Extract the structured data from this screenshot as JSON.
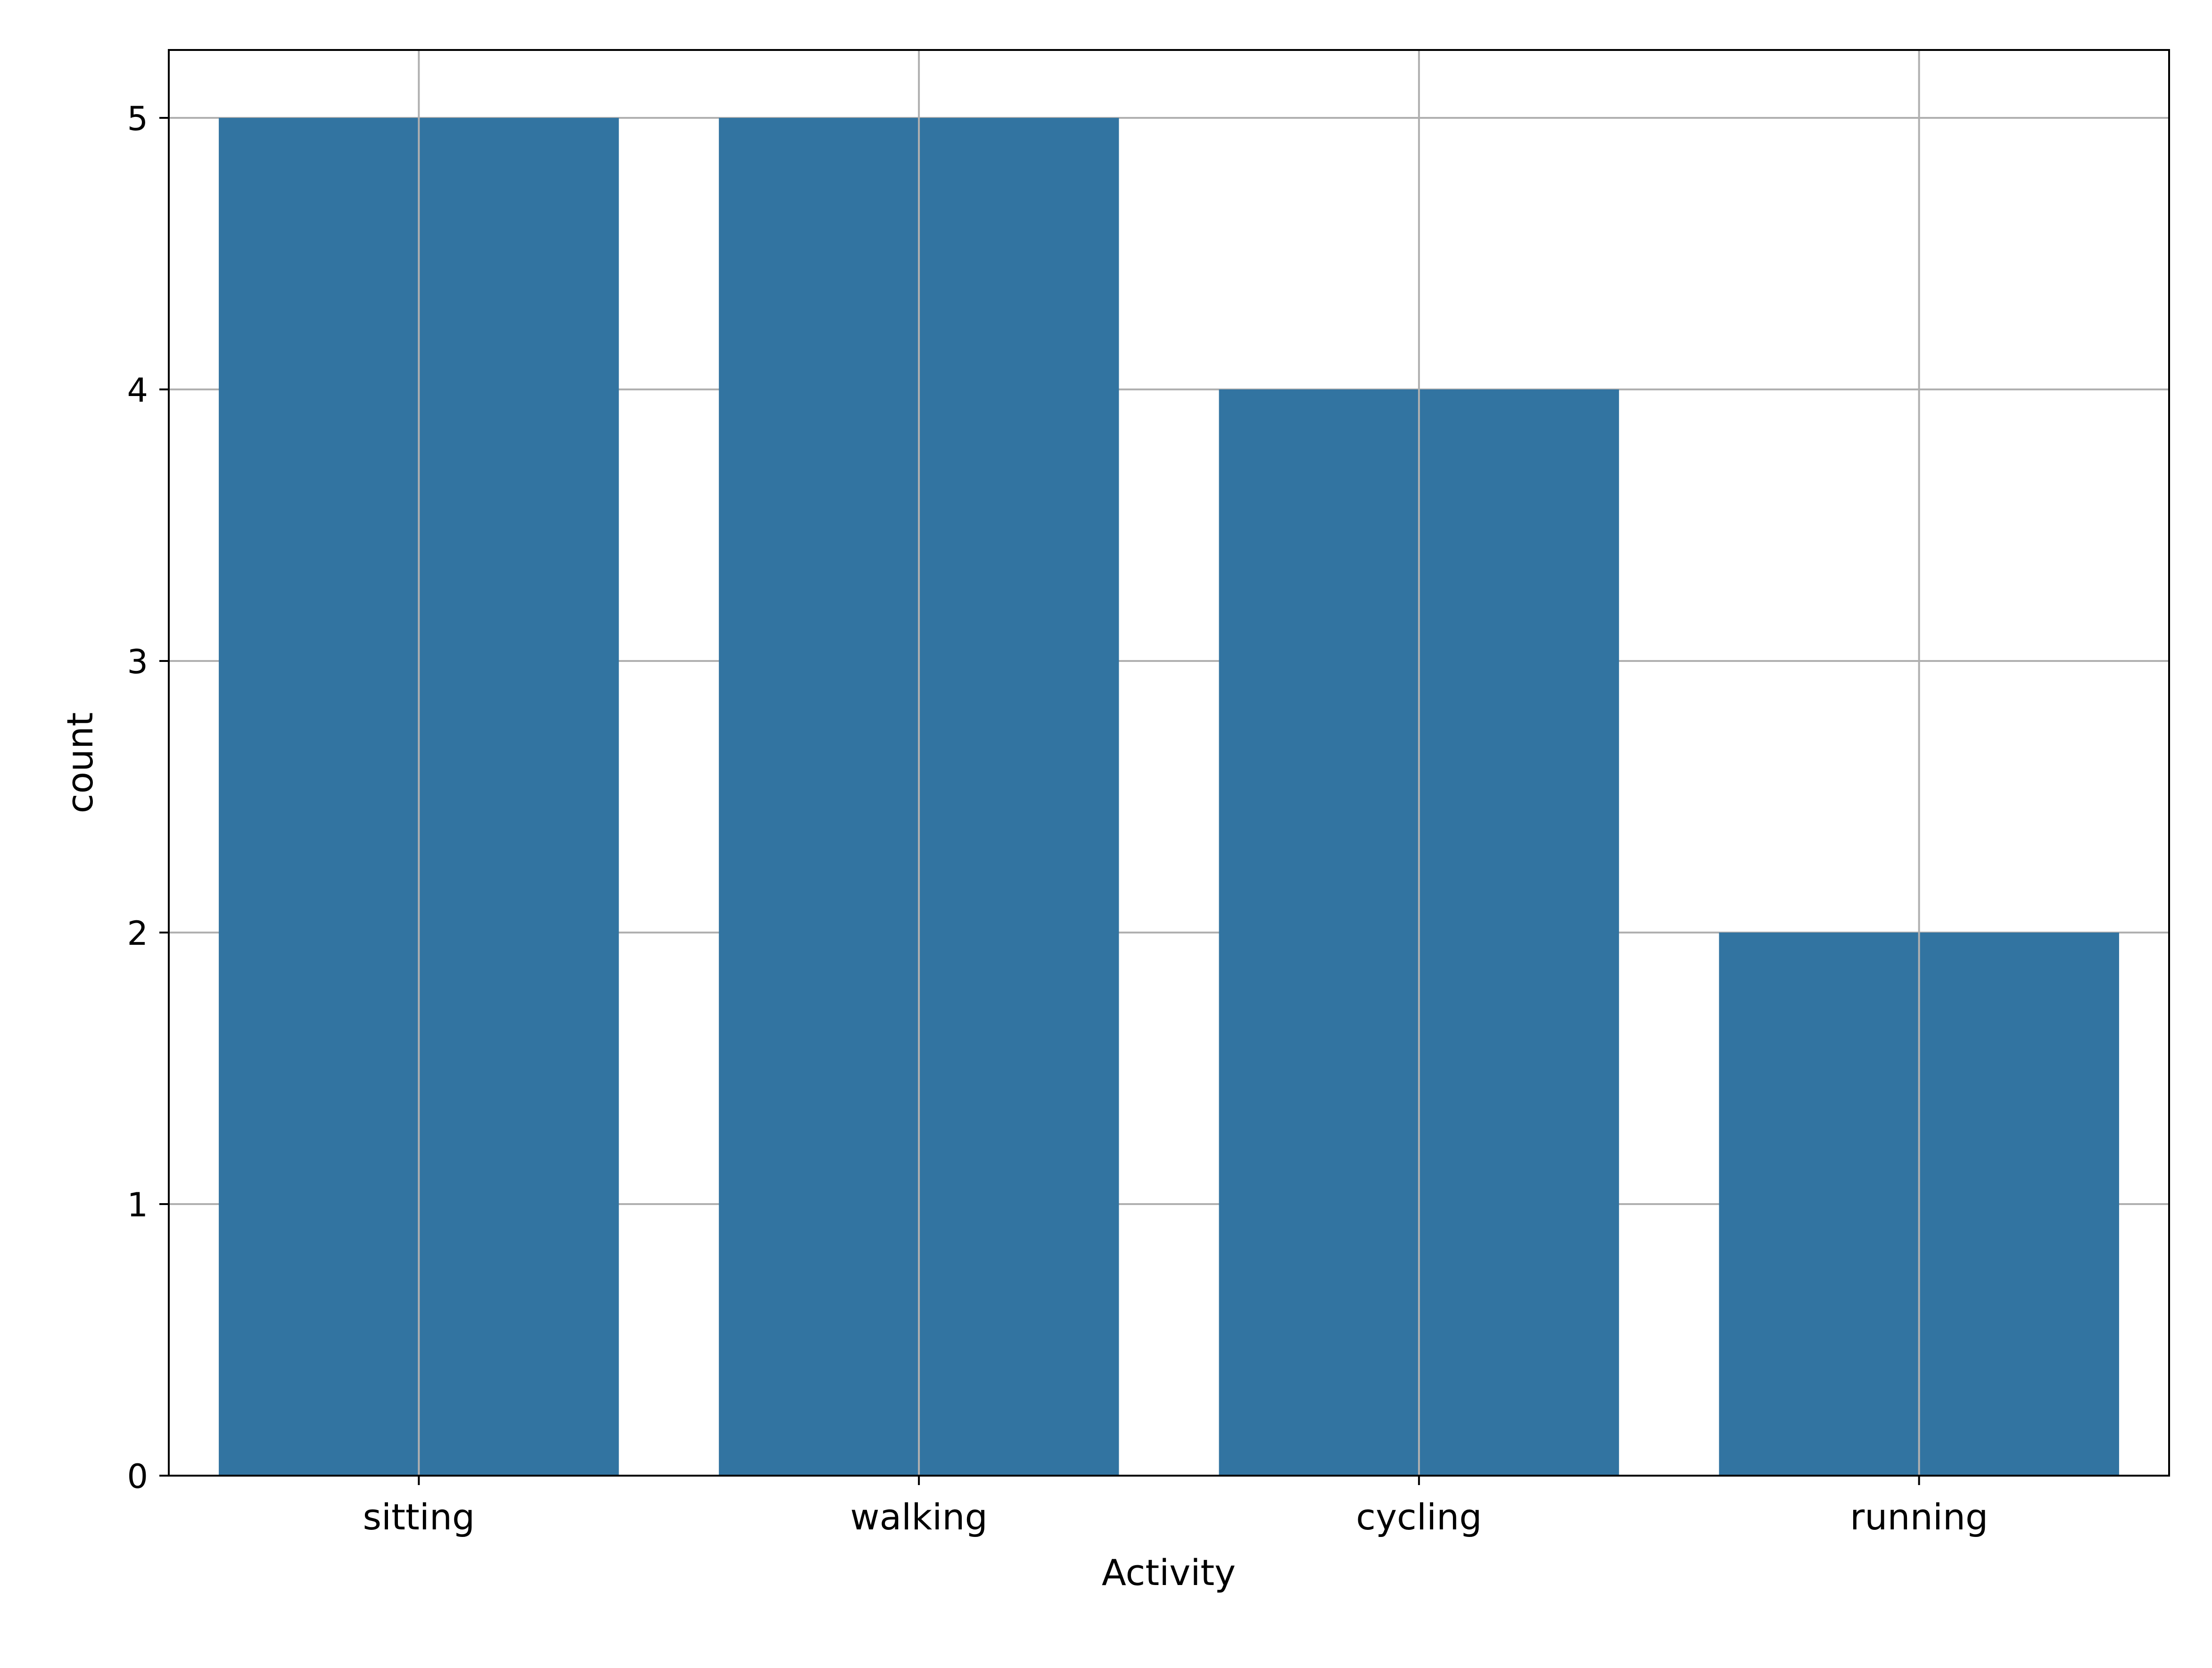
{
  "chart_data": {
    "type": "bar",
    "categories": [
      "sitting",
      "walking",
      "cycling",
      "running"
    ],
    "values": [
      5,
      5,
      4,
      2
    ],
    "title": "",
    "xlabel": "Activity",
    "ylabel": "count",
    "ylim": [
      0,
      5.25
    ],
    "yticks": [
      "0",
      "1",
      "2",
      "3",
      "4",
      "5"
    ],
    "grid": true,
    "legend": "none",
    "bar_color": "#3274a1",
    "grid_color": "#b0b0b0"
  }
}
